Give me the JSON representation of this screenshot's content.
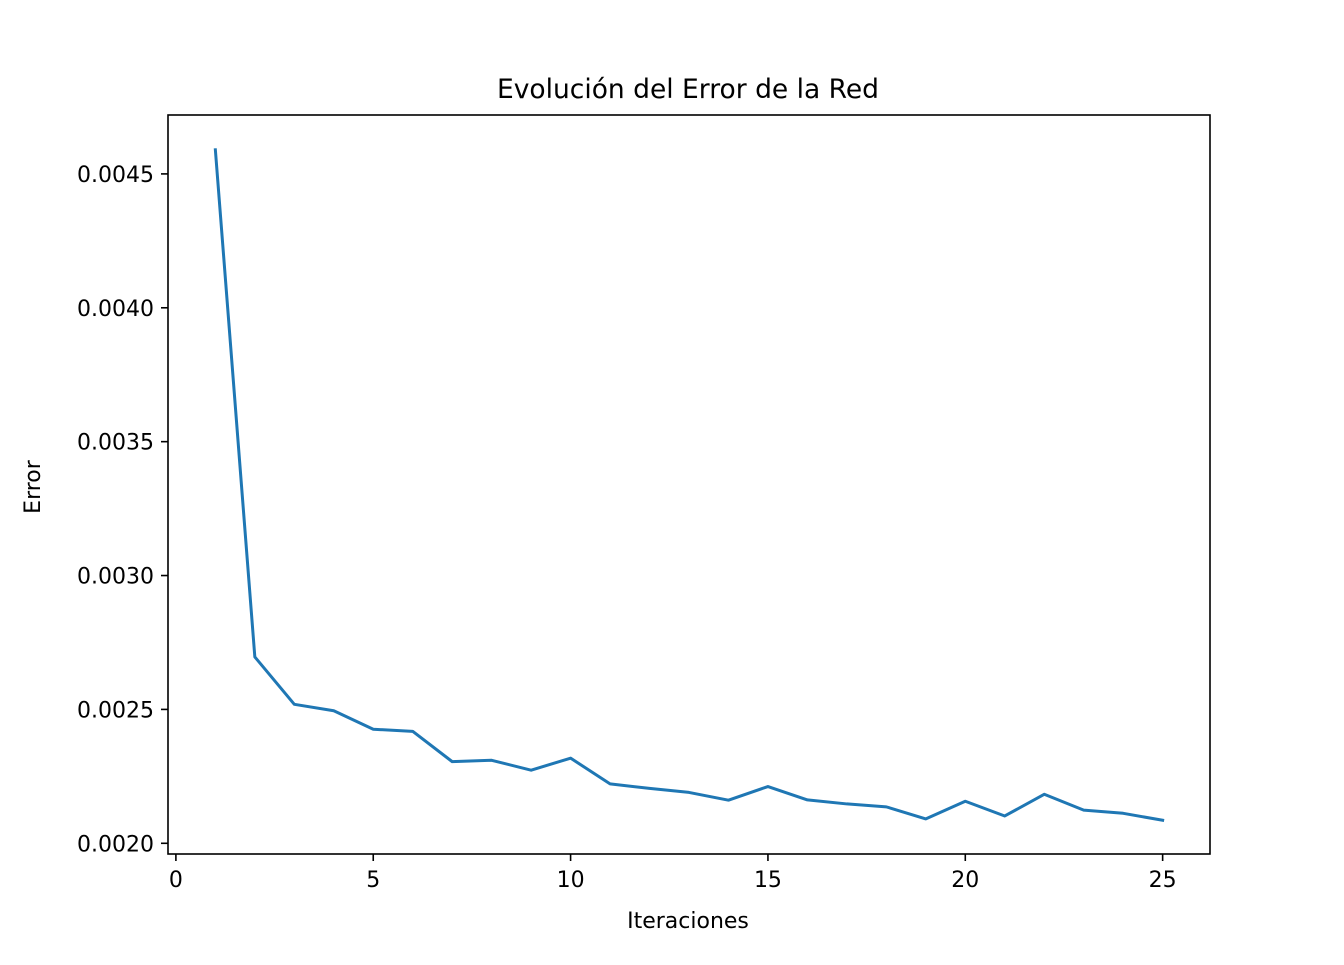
{
  "chart_data": {
    "type": "line",
    "title": "Evolución del Error de la Red",
    "xlabel": "Iteraciones",
    "ylabel": "Error",
    "xlim": [
      -0.2,
      26.2
    ],
    "ylim": [
      0.00196,
      0.00472
    ],
    "xticks": [
      0,
      5,
      10,
      15,
      20,
      25
    ],
    "xtick_labels": [
      "0",
      "5",
      "10",
      "15",
      "20",
      "25"
    ],
    "yticks": [
      0.002,
      0.0025,
      0.003,
      0.0035,
      0.004,
      0.0045
    ],
    "ytick_labels": [
      "0.0020",
      "0.0025",
      "0.0030",
      "0.0035",
      "0.0040",
      "0.0045"
    ],
    "grid": false,
    "legend": false,
    "series": [
      {
        "color": "#1f77b4",
        "x": [
          1,
          2,
          3,
          4,
          5,
          6,
          7,
          8,
          9,
          10,
          11,
          12,
          13,
          14,
          15,
          16,
          17,
          18,
          19,
          20,
          21,
          22,
          23,
          24,
          25
        ],
        "y": [
          0.00459,
          0.002696,
          0.002519,
          0.002495,
          0.002426,
          0.002418,
          0.002305,
          0.00231,
          0.002273,
          0.002318,
          0.002222,
          0.002205,
          0.00219,
          0.002161,
          0.002212,
          0.002162,
          0.002147,
          0.002136,
          0.002091,
          0.002157,
          0.002102,
          0.002183,
          0.002124,
          0.002112,
          0.002086
        ]
      }
    ]
  }
}
